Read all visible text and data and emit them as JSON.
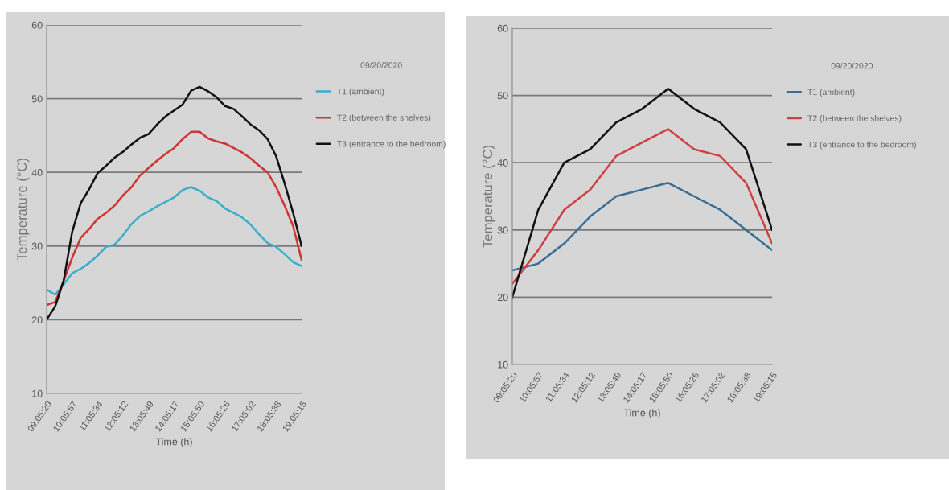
{
  "chart_data": [
    {
      "type": "line",
      "xlabel": "Time (h)",
      "ylabel": "Temperature (°C)",
      "legend_title": "09/20/2020",
      "categories": [
        "09:05:20",
        null,
        null,
        "10:05:57",
        null,
        null,
        "11:05:34",
        null,
        null,
        "12:05:12",
        null,
        null,
        "13:05:49",
        null,
        null,
        "14:05:17",
        null,
        null,
        "15:05:50",
        null,
        null,
        "16:05:26",
        null,
        null,
        "17:05:02",
        null,
        null,
        "18:05:38",
        null,
        null,
        "19:05:15"
      ],
      "ylim": [
        10,
        60
      ],
      "yticks": [
        10,
        20,
        30,
        40,
        50,
        60
      ],
      "grid": "y",
      "legend": "right",
      "series": [
        {
          "name": "T1 (ambient)",
          "color": "#3aaecc",
          "values": [
            24.1,
            23.4,
            24.8,
            26.3,
            26.9,
            27.7,
            28.7,
            29.9,
            30.2,
            31.5,
            33.0,
            34.1,
            34.7,
            35.4,
            36.0,
            36.6,
            37.6,
            38.0,
            37.5,
            36.6,
            36.1,
            35.1,
            34.5,
            33.9,
            32.9,
            31.6,
            30.4,
            29.9,
            28.9,
            27.8,
            27.3
          ]
        },
        {
          "name": "T2 (between the shelves)",
          "color": "#d03434",
          "values": [
            22.0,
            22.4,
            25.3,
            28.4,
            31.1,
            32.3,
            33.7,
            34.5,
            35.5,
            36.9,
            38.0,
            39.6,
            40.6,
            41.6,
            42.5,
            43.3,
            44.5,
            45.5,
            45.5,
            44.6,
            44.2,
            43.9,
            43.3,
            42.7,
            41.9,
            40.9,
            40.0,
            38.0,
            35.5,
            32.7,
            28.1
          ]
        },
        {
          "name": "T3 (entrance to the bedroom)",
          "color": "#111111",
          "values": [
            20.0,
            21.8,
            25.3,
            31.9,
            35.8,
            37.7,
            39.9,
            40.9,
            42.0,
            42.8,
            43.8,
            44.7,
            45.2,
            46.5,
            47.6,
            48.4,
            49.2,
            51.1,
            51.6,
            51.0,
            50.2,
            49.0,
            48.6,
            47.6,
            46.5,
            45.7,
            44.5,
            42.2,
            38.5,
            34.5,
            30.0
          ]
        }
      ]
    },
    {
      "type": "line",
      "xlabel": "Time (h)",
      "ylabel": "Temperature (°C)",
      "legend_title": "09/20/2020",
      "categories": [
        "09:05:20",
        "10:05:57",
        "11:05:34",
        "12:05:12",
        "13:05:49",
        "14:05:17",
        "15:05:50",
        "16:05:26",
        "17:05:02",
        "18:05:38",
        "19:05:15"
      ],
      "ylim": [
        10,
        60
      ],
      "yticks": [
        10,
        20,
        30,
        40,
        50,
        60
      ],
      "grid": "y",
      "legend": "right",
      "series": [
        {
          "name": "T1 (ambient)",
          "color": "#3a6e96",
          "values": [
            24,
            25,
            28,
            32,
            35,
            36,
            37,
            35,
            33,
            30,
            27
          ]
        },
        {
          "name": "T2 (between the shelves)",
          "color": "#d04040",
          "values": [
            22,
            27,
            33,
            36,
            41,
            43,
            45,
            42,
            41,
            37,
            28
          ]
        },
        {
          "name": "T3 (entrance to the bedroom)",
          "color": "#111111",
          "values": [
            20,
            33,
            40,
            42,
            46,
            48,
            51,
            48,
            46,
            42,
            30
          ]
        }
      ]
    }
  ]
}
